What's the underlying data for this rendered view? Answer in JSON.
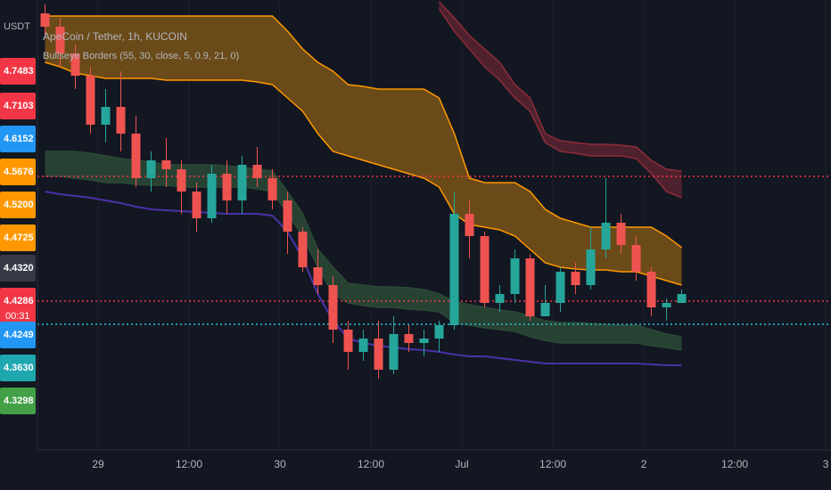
{
  "chart_data": {
    "type": "candlestick",
    "title": "ApeCoin / Tether, 1h, KUCOIN",
    "subtitle": "Bullseye Borders (55, 30, close, 5, 0.9, 21, 0)",
    "y_axis_unit": "USDT",
    "x": [
      -7,
      -5,
      -3,
      -1,
      1,
      3,
      5,
      7,
      9,
      11,
      13,
      15,
      17,
      19,
      21,
      23,
      25,
      27,
      29,
      31,
      33,
      35,
      37,
      39,
      41,
      43,
      45,
      47,
      49,
      51,
      53,
      55,
      57,
      59,
      61,
      63,
      65,
      67,
      69,
      71,
      73,
      75,
      77
    ],
    "open": [
      4.4932,
      4.4902,
      4.4842,
      4.4792,
      4.4682,
      4.4722,
      4.4662,
      4.4562,
      4.4602,
      4.4582,
      4.4532,
      4.4472,
      4.4572,
      4.4512,
      4.4592,
      4.4562,
      4.4512,
      4.4442,
      4.4362,
      4.4322,
      4.4222,
      4.4172,
      4.4202,
      4.4132,
      4.4212,
      4.4192,
      4.4202,
      4.4232,
      4.4482,
      4.4432,
      4.4282,
      4.4302,
      4.4382,
      4.4252,
      4.4282,
      4.4352,
      4.4322,
      4.4402,
      4.4462,
      4.4412,
      4.4352,
      4.4272,
      4.4282
    ],
    "high": [
      4.4952,
      4.4922,
      4.4862,
      4.4812,
      4.4762,
      4.4802,
      4.4702,
      4.4622,
      4.4652,
      4.4602,
      4.4552,
      4.4592,
      4.4602,
      4.4612,
      4.4632,
      4.4582,
      4.4532,
      4.4452,
      4.4402,
      4.4342,
      4.4242,
      4.4222,
      4.4242,
      4.4252,
      4.4232,
      4.4222,
      4.4242,
      4.4532,
      4.4512,
      4.4442,
      4.4322,
      4.4402,
      4.4392,
      4.4322,
      4.4362,
      4.4372,
      4.4452,
      4.4562,
      4.4482,
      4.4432,
      4.4362,
      4.4292,
      4.4312
    ],
    "low": [
      4.4882,
      4.4812,
      4.4762,
      4.4662,
      4.4642,
      4.4622,
      4.4542,
      4.4532,
      4.4542,
      4.4482,
      4.4442,
      4.4462,
      4.4482,
      4.4482,
      4.4542,
      4.4492,
      4.4392,
      4.4352,
      4.4302,
      4.4192,
      4.4132,
      4.4152,
      4.4112,
      4.4122,
      4.4172,
      4.4162,
      4.4172,
      4.4222,
      4.4382,
      4.4272,
      4.4262,
      4.4282,
      4.4242,
      4.4252,
      4.4262,
      4.4302,
      4.4312,
      4.4382,
      4.4392,
      4.4332,
      4.4252,
      4.4242,
      4.4282
    ],
    "close": [
      4.4902,
      4.4842,
      4.4792,
      4.4682,
      4.4722,
      4.4662,
      4.4562,
      4.4602,
      4.4582,
      4.4532,
      4.4472,
      4.4572,
      4.4512,
      4.4592,
      4.4562,
      4.4512,
      4.4442,
      4.4362,
      4.4322,
      4.4222,
      4.4172,
      4.4202,
      4.4132,
      4.4212,
      4.4192,
      4.4202,
      4.4232,
      4.4482,
      4.4432,
      4.4282,
      4.4302,
      4.4382,
      4.4252,
      4.4282,
      4.4352,
      4.4322,
      4.4402,
      4.4462,
      4.4412,
      4.4352,
      4.4272,
      4.4282,
      4.4302
    ],
    "up_color": "#26a69a",
    "down_color": "#ef5350",
    "bands": [
      {
        "upper": [
          4.4926,
          4.4926,
          4.4926,
          4.4926,
          4.4926,
          4.4926,
          4.4926,
          4.4926,
          4.4926,
          4.4926,
          4.4926,
          4.4926,
          4.4926,
          4.4926,
          4.4926,
          4.4926,
          4.4892,
          4.4852,
          4.4822,
          4.4802,
          4.4772,
          4.4768,
          4.4762,
          4.4762,
          4.4762,
          4.4762,
          4.4742,
          4.4662,
          4.4562,
          4.4552,
          4.4552,
          4.4552,
          4.4532,
          4.4492,
          4.4472,
          4.4462,
          4.4452,
          4.4452,
          4.4452,
          4.4452,
          4.4452,
          4.4432,
          4.4406
        ],
        "lower": [
          4.4822,
          4.4812,
          4.4798,
          4.4792,
          4.4786,
          4.4786,
          4.4786,
          4.4786,
          4.4782,
          4.4782,
          4.4782,
          4.4782,
          4.4782,
          4.4782,
          4.4778,
          4.4772,
          4.4742,
          4.4712,
          4.4662,
          4.4622,
          4.4612,
          4.4602,
          4.4592,
          4.4582,
          4.4572,
          4.4562,
          4.4542,
          4.4482,
          4.4458,
          4.4452,
          4.4446,
          4.4432,
          4.4402,
          4.4372,
          4.4362,
          4.4358,
          4.4356,
          4.4356,
          4.4352,
          4.4352,
          4.4342,
          4.4332,
          4.4322
        ],
        "color": "#7a5418",
        "line_color": "#ff9800"
      },
      {
        "upper": [
          4.4622,
          4.4622,
          4.4622,
          4.4618,
          4.4612,
          4.4606,
          4.4602,
          4.4598,
          4.4592,
          4.4592,
          4.4592,
          4.4592,
          4.459,
          4.4586,
          4.4582,
          4.4578,
          4.4532,
          4.4482,
          4.4402,
          4.4362,
          4.4326,
          4.4322,
          4.4318,
          4.4318,
          4.4316,
          4.4312,
          4.4302,
          4.4286,
          4.4278,
          4.4272,
          4.4266,
          4.4262,
          4.4252,
          4.4242,
          4.4238,
          4.4238,
          4.4236,
          4.4234,
          4.4232,
          4.4232,
          4.4222,
          4.4212,
          4.4206
        ],
        "lower": [
          4.4566,
          4.4566,
          4.4562,
          4.4558,
          4.4552,
          4.4552,
          4.4548,
          4.4546,
          4.4546,
          4.4542,
          4.4542,
          4.4542,
          4.4542,
          4.4542,
          4.4538,
          4.4532,
          4.4482,
          4.4432,
          4.4362,
          4.4302,
          4.4282,
          4.4276,
          4.4272,
          4.4272,
          4.4268,
          4.4266,
          4.4262,
          4.4238,
          4.4232,
          4.4226,
          4.4222,
          4.4218,
          4.4206,
          4.4198,
          4.4192,
          4.4192,
          4.4192,
          4.4192,
          4.4192,
          4.4192,
          4.4186,
          4.4182,
          4.4176
        ],
        "color": "#2b4a36",
        "line_color": "#2b4a36"
      },
      {
        "upper": [
          null,
          null,
          null,
          null,
          null,
          null,
          null,
          null,
          null,
          null,
          null,
          null,
          null,
          null,
          null,
          null,
          null,
          null,
          null,
          null,
          null,
          null,
          null,
          null,
          null,
          null,
          4.4958,
          4.4922,
          4.4882,
          4.4852,
          4.4822,
          4.4772,
          4.4742,
          4.4662,
          4.4646,
          4.4642,
          4.4638,
          4.4638,
          4.4636,
          4.4632,
          4.4602,
          4.4582,
          4.4578
        ],
        "lower": [
          null,
          null,
          null,
          null,
          null,
          null,
          null,
          null,
          null,
          null,
          null,
          null,
          null,
          null,
          null,
          null,
          null,
          null,
          null,
          null,
          null,
          null,
          null,
          null,
          null,
          null,
          4.4942,
          4.4892,
          4.4852,
          4.4812,
          4.4782,
          4.4742,
          4.4712,
          4.4642,
          4.4622,
          4.4618,
          4.4612,
          4.4612,
          4.4612,
          4.4606,
          4.4572,
          4.4532,
          4.4518
        ],
        "color": "#5a2330",
        "line_color": "#8e2c3a"
      }
    ],
    "lines": [
      {
        "values": [
          4.4532,
          4.4526,
          4.4522,
          4.4518,
          4.4512,
          4.4506,
          4.4498,
          4.4492,
          4.449,
          4.4488,
          4.4486,
          4.4484,
          4.4482,
          4.4482,
          4.4482,
          4.4478,
          4.4442,
          4.4382,
          4.4302,
          4.4242,
          4.4202,
          4.4192,
          4.4186,
          4.4182,
          4.4178,
          4.4176,
          4.4172,
          4.4166,
          4.4162,
          4.4162,
          4.4158,
          4.4154,
          4.415,
          4.4146,
          4.4146,
          4.4146,
          4.4146,
          4.4146,
          4.4146,
          4.4146,
          4.4144,
          4.4142,
          4.4142
        ],
        "color": "#4a32a8"
      }
    ],
    "levels": [
      {
        "value": 4.4566,
        "color": "#f23645"
      },
      {
        "value": 4.4286,
        "color": "#f23645"
      },
      {
        "value": 4.4234,
        "color": "#26c6da"
      }
    ],
    "price_labels": [
      {
        "label": "4.7483",
        "color": "#f23645"
      },
      {
        "label": "4.7103",
        "color": "#f23645"
      },
      {
        "label": "4.6152",
        "color": "#2196f3"
      },
      {
        "label": "4.5676",
        "color": "#ff9800"
      },
      {
        "label": "4.5200",
        "color": "#ff9800"
      },
      {
        "label": "4.4725",
        "color": "#ff9800"
      },
      {
        "label": "4.4320",
        "color": "#363a45"
      },
      {
        "label": "4.4286",
        "sublabel": "00:31",
        "color": "#f23645"
      },
      {
        "label": "4.4249",
        "color": "#2196f3"
      },
      {
        "label": "4.3630",
        "color": "#1fa7b0"
      },
      {
        "label": "4.3298",
        "color": "#43a047"
      }
    ],
    "xlim": [
      -8,
      96.7
    ],
    "xticks": [
      {
        "value": 0,
        "label": "29"
      },
      {
        "value": 12,
        "label": "12:00"
      },
      {
        "value": 24,
        "label": "30"
      },
      {
        "value": 36,
        "label": "12:00"
      },
      {
        "value": 48,
        "label": "Jul"
      },
      {
        "value": 60,
        "label": "12:00"
      },
      {
        "value": 72,
        "label": "2"
      },
      {
        "value": 84,
        "label": "12:00"
      },
      {
        "value": 96,
        "label": "3"
      }
    ],
    "ylim": [
      4.3952,
      4.4962
    ],
    "grid": true
  }
}
